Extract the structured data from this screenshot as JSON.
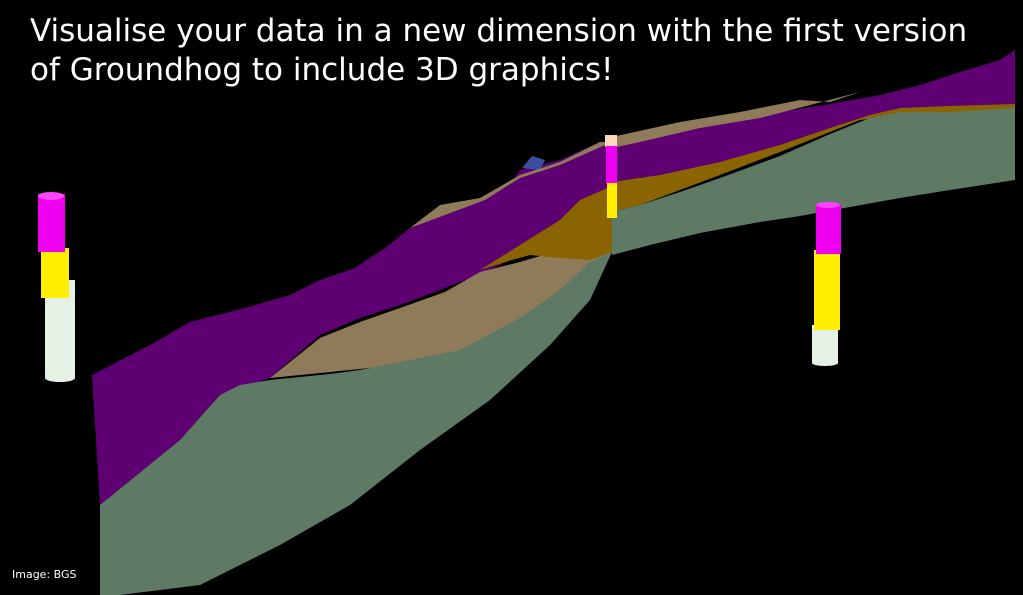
{
  "headline": {
    "line1": "Visualise your data in a new dimension with the first version",
    "line2": "of Groundhog to include 3D graphics!"
  },
  "credit": "Image: BGS",
  "colors": {
    "background": "#000000",
    "layer_purple": "#5e0072",
    "layer_purple_top": "#73008a",
    "layer_tan": "#8f7b5a",
    "layer_orange": "#8a6400",
    "layer_green": "#5e7a64",
    "layer_blue": "#3a4fa0",
    "borehole_magenta": "#ee00ee",
    "borehole_yellow": "#ffee00",
    "borehole_white": "#e4f1e4",
    "borehole_cap": "#ffd8c0"
  },
  "scene": {
    "type": "3d-geological-cross-section",
    "boreholes": [
      {
        "name": "borehole-left",
        "segments": [
          "magenta",
          "yellow",
          "white"
        ]
      },
      {
        "name": "borehole-center",
        "segments": [
          "cap",
          "magenta",
          "yellow"
        ]
      },
      {
        "name": "borehole-right",
        "segments": [
          "magenta",
          "yellow",
          "white"
        ]
      }
    ],
    "layers": [
      "purple",
      "tan",
      "orange",
      "green",
      "blue"
    ]
  }
}
